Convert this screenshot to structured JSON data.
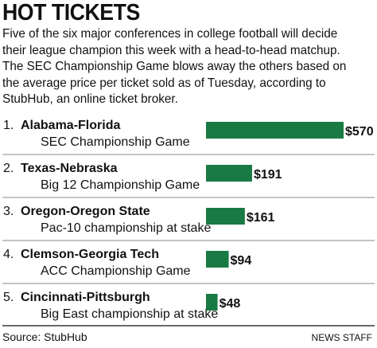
{
  "title": "HOT TICKETS",
  "intro_lines": [
    "Five of the six major conferences in college football will decide",
    "their league champion this week with a head-to-head matchup.",
    "The SEC Championship Game blows away the others based on",
    "the average price per ticket sold as of Tuesday, according to",
    "StubHub, an online ticket broker."
  ],
  "chart_data": {
    "type": "bar",
    "orientation": "horizontal",
    "categories": [
      {
        "rank": "1.",
        "matchup": "Alabama-Florida",
        "description": "SEC Championship Game"
      },
      {
        "rank": "2.",
        "matchup": "Texas-Nebraska",
        "description": "Big 12 Championship Game"
      },
      {
        "rank": "3.",
        "matchup": "Oregon-Oregon State",
        "description": "Pac-10 championship at stake"
      },
      {
        "rank": "4.",
        "matchup": "Clemson-Georgia Tech",
        "description": "ACC Championship Game"
      },
      {
        "rank": "5.",
        "matchup": "Cincinnati-Pittsburgh",
        "description": "Big East championship at stake"
      }
    ],
    "values": [
      570,
      191,
      161,
      94,
      48
    ],
    "value_labels": [
      "$570",
      "$191",
      "$161",
      "$94",
      "$48"
    ],
    "bar_color": "#1a7a44",
    "grid": false
  },
  "source": "Source: StubHub",
  "credit": "NEWS STAFF",
  "colors": {
    "bar": "#1a7a44",
    "divider": "#888888"
  }
}
